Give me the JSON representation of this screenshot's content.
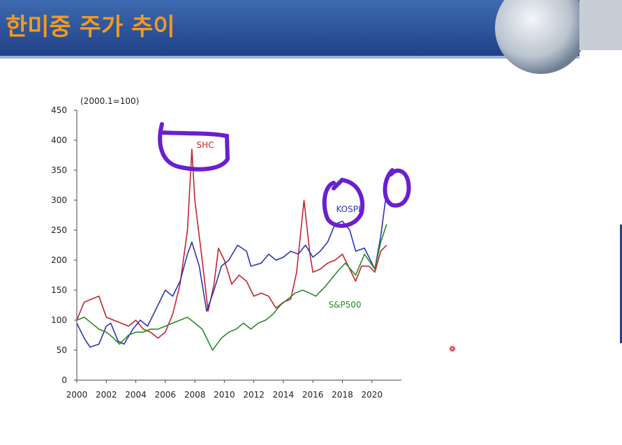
{
  "chart_data": {
    "type": "line",
    "title": "한미중 주가 추이",
    "ylabel": "(2000.1=100)",
    "xlim": [
      2000,
      2022
    ],
    "xticks": [
      2000,
      2002,
      2004,
      2006,
      2008,
      2010,
      2012,
      2014,
      2016,
      2018,
      2020
    ],
    "ylim": [
      0,
      450
    ],
    "yticks": [
      0,
      50,
      100,
      150,
      200,
      250,
      300,
      350,
      400,
      450
    ],
    "series": [
      {
        "name": "SHC",
        "color": "#c0262d",
        "x": [
          2000,
          2000.5,
          2001,
          2001.5,
          2002,
          2002.5,
          2003,
          2003.5,
          2004,
          2004.5,
          2005,
          2005.5,
          2006,
          2006.5,
          2007,
          2007.5,
          2007.8,
          2008,
          2008.5,
          2008.9,
          2009.3,
          2009.6,
          2010,
          2010.5,
          2011,
          2011.5,
          2012,
          2012.5,
          2013,
          2013.5,
          2014,
          2014.5,
          2014.9,
          2015.4,
          2015.8,
          2016,
          2016.5,
          2017,
          2017.5,
          2018,
          2018.5,
          2018.9,
          2019.3,
          2019.8,
          2020.2,
          2020.6,
          2021
        ],
        "values": [
          100,
          130,
          135,
          140,
          105,
          100,
          95,
          90,
          100,
          85,
          80,
          70,
          80,
          110,
          160,
          250,
          385,
          300,
          200,
          115,
          160,
          220,
          200,
          160,
          175,
          165,
          140,
          145,
          140,
          120,
          130,
          135,
          180,
          300,
          210,
          180,
          185,
          195,
          200,
          210,
          185,
          165,
          190,
          190,
          180,
          215,
          225
        ]
      },
      {
        "name": "KOSPI",
        "color": "#2b35b5",
        "x": [
          2000,
          2000.5,
          2000.9,
          2001.5,
          2002,
          2002.3,
          2002.8,
          2003.2,
          2003.8,
          2004.3,
          2004.8,
          2005.5,
          2006,
          2006.5,
          2007,
          2007.5,
          2007.8,
          2008.3,
          2008.8,
          2009.3,
          2009.8,
          2010.3,
          2010.9,
          2011.5,
          2011.8,
          2012.5,
          2013,
          2013.5,
          2014,
          2014.5,
          2015,
          2015.5,
          2016,
          2016.5,
          2017,
          2017.5,
          2018,
          2018.5,
          2018.9,
          2019.5,
          2020.2,
          2020.6,
          2021
        ],
        "values": [
          95,
          70,
          55,
          60,
          90,
          95,
          65,
          60,
          85,
          100,
          90,
          125,
          150,
          140,
          165,
          210,
          230,
          190,
          115,
          150,
          190,
          200,
          225,
          215,
          190,
          195,
          210,
          200,
          205,
          215,
          210,
          225,
          205,
          215,
          230,
          260,
          265,
          250,
          215,
          220,
          185,
          240,
          315
        ]
      },
      {
        "name": "S&P500",
        "color": "#2a8a2a",
        "x": [
          2000,
          2000.5,
          2001,
          2001.5,
          2002,
          2002.5,
          2002.9,
          2003.5,
          2004,
          2004.5,
          2005,
          2005.5,
          2006,
          2006.5,
          2007,
          2007.5,
          2008,
          2008.5,
          2008.9,
          2009.2,
          2009.8,
          2010.3,
          2010.8,
          2011.3,
          2011.8,
          2012.3,
          2012.8,
          2013.3,
          2013.8,
          2014.3,
          2014.8,
          2015.3,
          2015.8,
          2016.2,
          2016.8,
          2017.3,
          2017.8,
          2018.2,
          2018.9,
          2019.5,
          2020.2,
          2020.6,
          2021
        ],
        "values": [
          100,
          105,
          95,
          85,
          80,
          70,
          60,
          75,
          80,
          80,
          85,
          85,
          90,
          95,
          100,
          105,
          95,
          85,
          65,
          50,
          70,
          80,
          85,
          95,
          85,
          95,
          100,
          110,
          125,
          135,
          145,
          150,
          145,
          140,
          155,
          170,
          185,
          195,
          175,
          210,
          185,
          230,
          260
        ]
      }
    ]
  }
}
